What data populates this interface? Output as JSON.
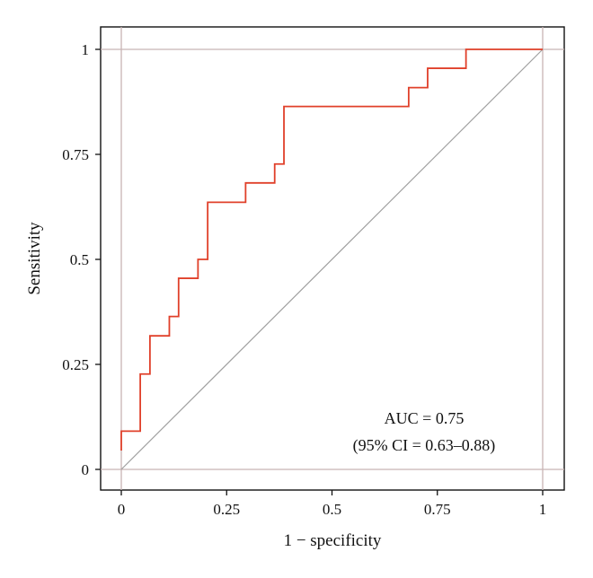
{
  "chart_data": {
    "type": "line",
    "title": "",
    "xlabel": "1 − specificity",
    "ylabel": "Sensitivity",
    "xlim": [
      0,
      1
    ],
    "ylim": [
      0,
      1
    ],
    "x_ticks": [
      0,
      0.25,
      0.5,
      0.75,
      1
    ],
    "x_tick_labels": [
      "0",
      "0.25",
      "0.5",
      "0.75",
      "1"
    ],
    "y_ticks": [
      0,
      0.25,
      0.5,
      0.75,
      1
    ],
    "y_tick_labels": [
      "0",
      "0.25",
      "0.5",
      "0.75",
      "1"
    ],
    "grid": false,
    "reference_lines": {
      "x": [
        0,
        1
      ],
      "y": [
        0,
        1
      ],
      "color": "#c8b4b4"
    },
    "diagonal": {
      "x": [
        0,
        1
      ],
      "y": [
        0,
        1
      ],
      "color": "#a0a0a0"
    },
    "series": [
      {
        "color": "#e0402a",
        "x": [
          0,
          0,
          0.045,
          0.045,
          0.068,
          0.068,
          0.114,
          0.114,
          0.136,
          0.136,
          0.182,
          0.182,
          0.205,
          0.205,
          0.295,
          0.295,
          0.364,
          0.364,
          0.386,
          0.386,
          0.682,
          0.682,
          0.727,
          0.727,
          0.818,
          0.818,
          1.0
        ],
        "y": [
          0.045,
          0.091,
          0.091,
          0.227,
          0.227,
          0.318,
          0.318,
          0.364,
          0.364,
          0.455,
          0.455,
          0.5,
          0.5,
          0.636,
          0.636,
          0.682,
          0.682,
          0.727,
          0.727,
          0.864,
          0.864,
          0.909,
          0.909,
          0.955,
          0.955,
          1.0,
          1.0
        ]
      }
    ],
    "annotations": {
      "auc": "AUC = 0.75",
      "ci": "(95% CI = 0.63–0.88)"
    }
  }
}
